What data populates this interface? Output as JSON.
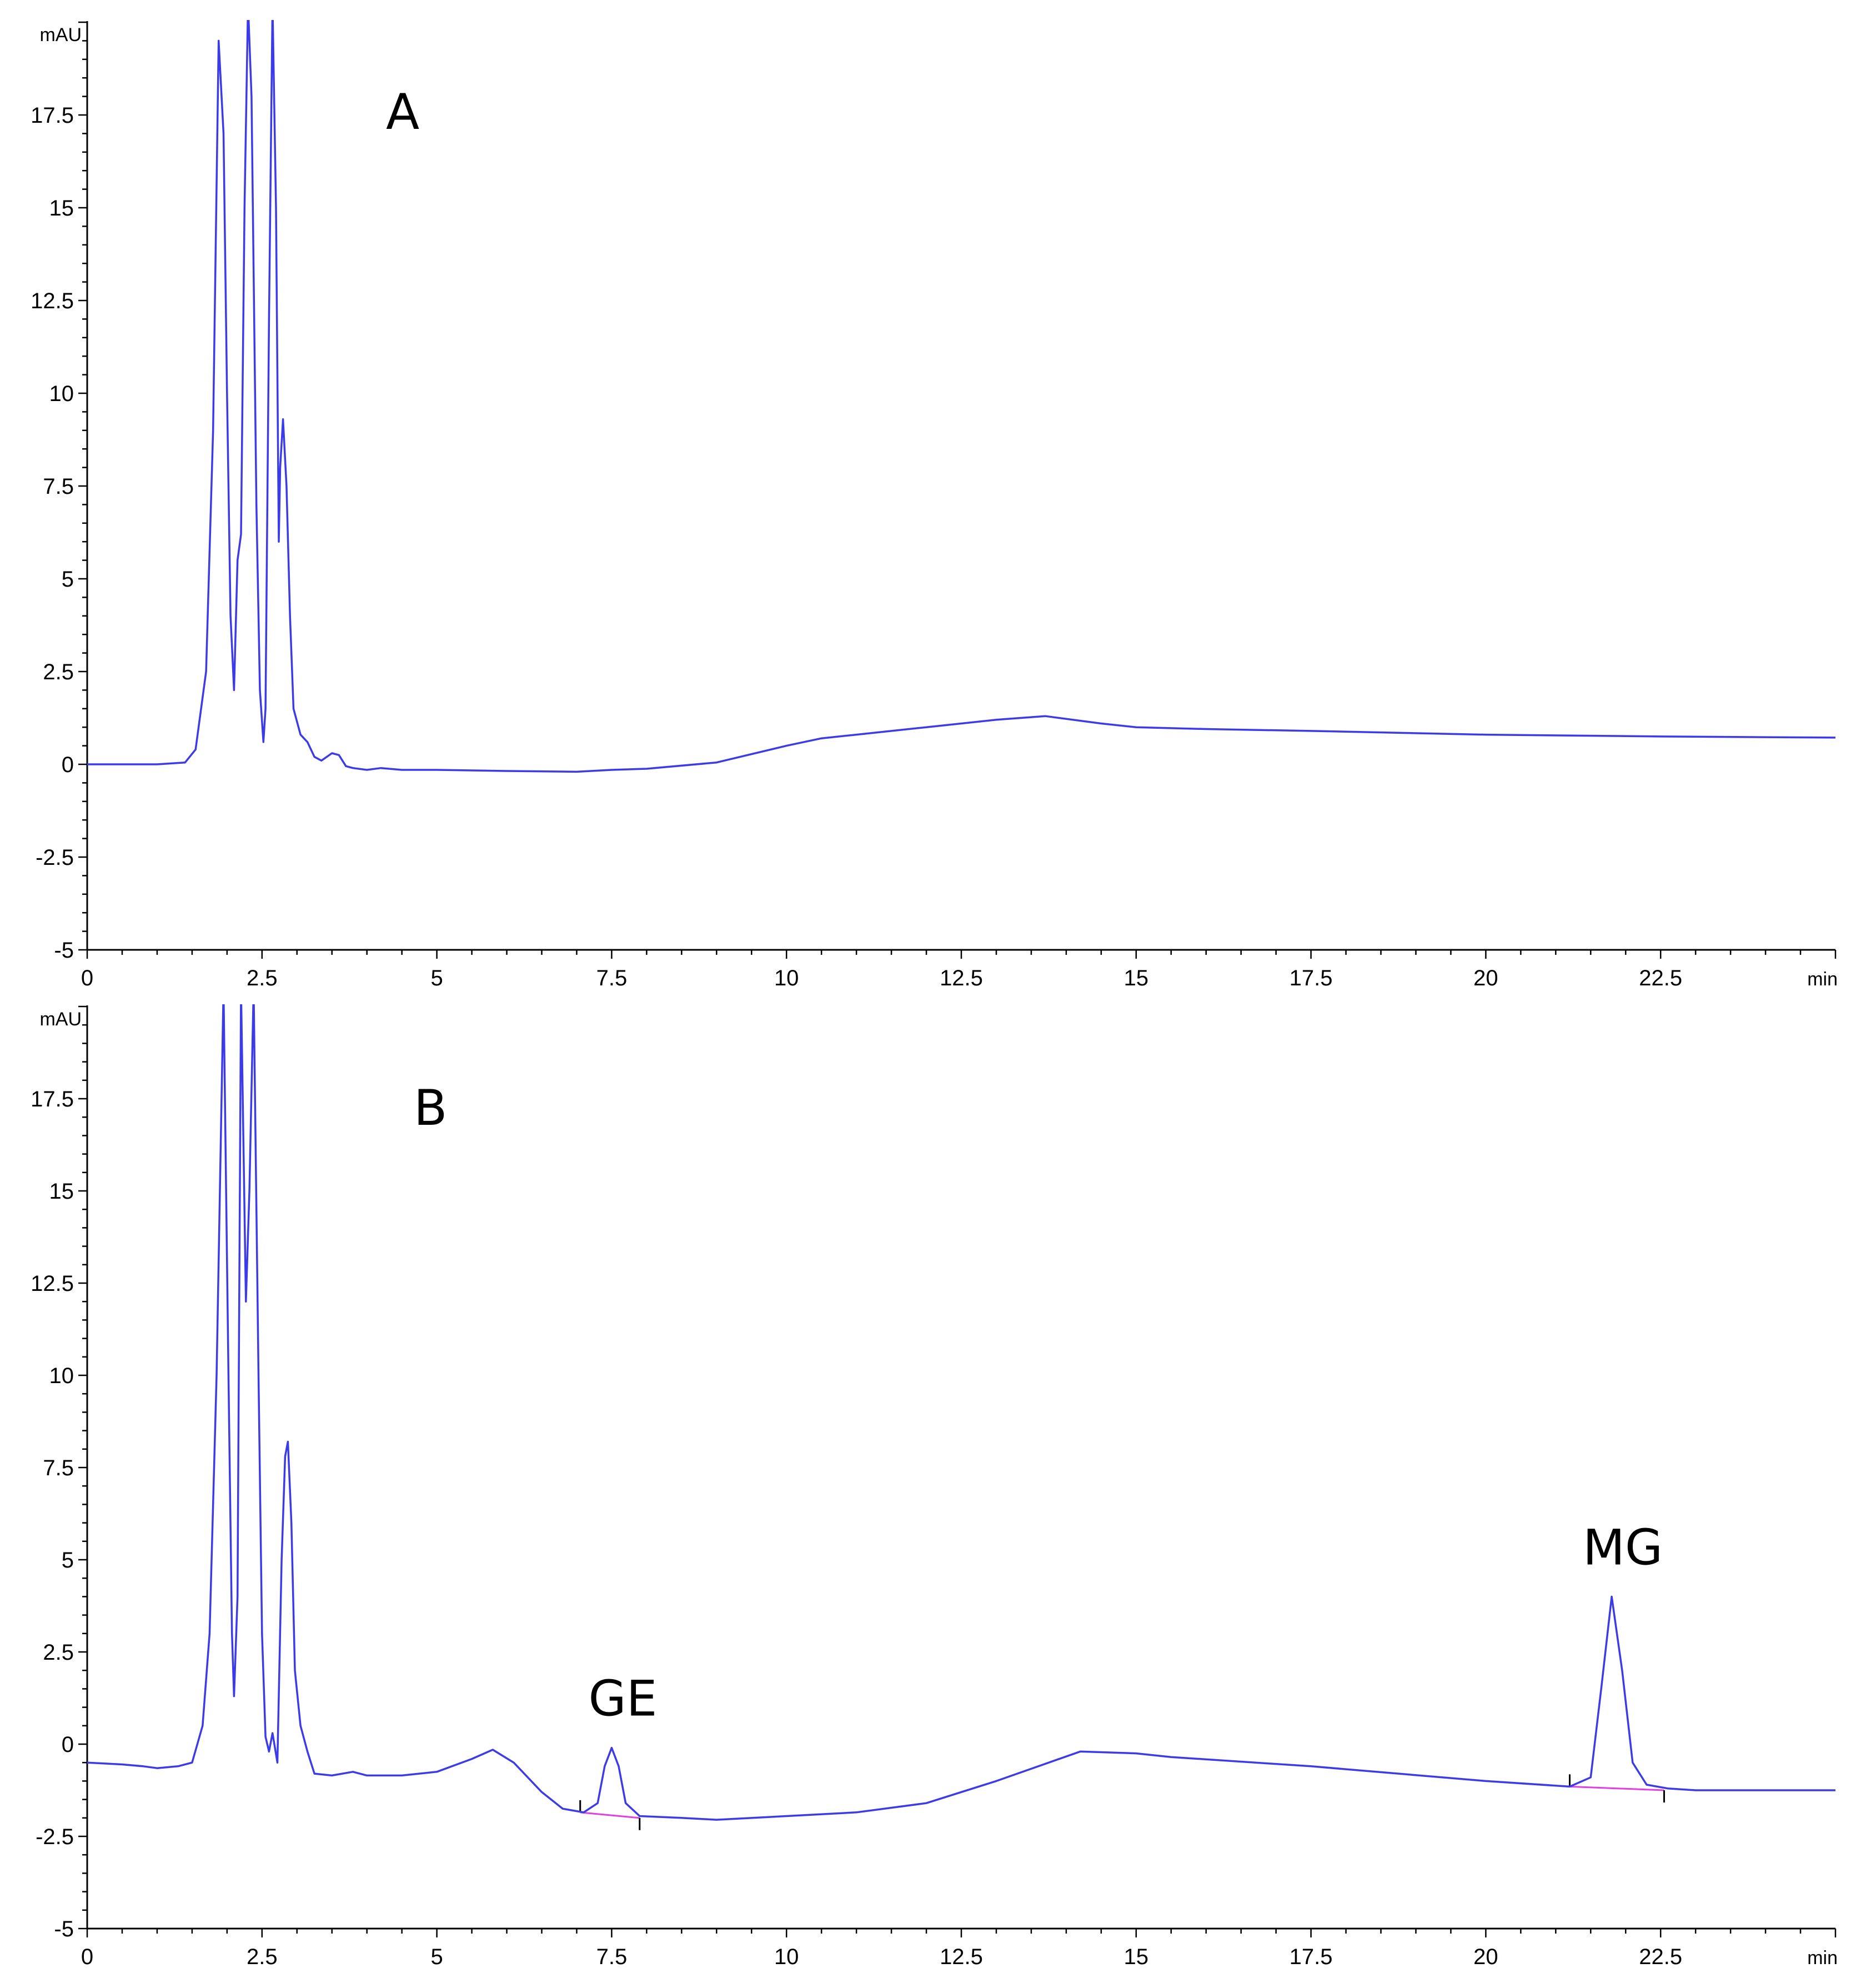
{
  "chart_data": [
    {
      "type": "line",
      "panel_label": "A",
      "ylabel": "mAU",
      "xlabel": "min",
      "xlim": [
        0,
        25
      ],
      "ylim": [
        -5,
        20
      ],
      "x_ticks": [
        "0",
        "2.5",
        "5",
        "7.5",
        "10",
        "12.5",
        "15",
        "17.5",
        "20",
        "22.5"
      ],
      "y_ticks": [
        "-5",
        "-2.5",
        "0",
        "2.5",
        "5",
        "7.5",
        "10",
        "12.5",
        "15",
        "17.5"
      ],
      "line_color": "#3b3be8",
      "points": [
        [
          0,
          0
        ],
        [
          1.0,
          0
        ],
        [
          1.4,
          0.05
        ],
        [
          1.55,
          0.4
        ],
        [
          1.7,
          2.5
        ],
        [
          1.8,
          9
        ],
        [
          1.88,
          19.5
        ],
        [
          1.95,
          17
        ],
        [
          2.0,
          10
        ],
        [
          2.05,
          4
        ],
        [
          2.1,
          2.0
        ],
        [
          2.15,
          5.5
        ],
        [
          2.2,
          6.2
        ],
        [
          2.25,
          15
        ],
        [
          2.3,
          20.5
        ],
        [
          2.35,
          18
        ],
        [
          2.42,
          7
        ],
        [
          2.47,
          2.0
        ],
        [
          2.52,
          0.6
        ],
        [
          2.55,
          1.5
        ],
        [
          2.6,
          12
        ],
        [
          2.65,
          20.5
        ],
        [
          2.7,
          15
        ],
        [
          2.74,
          6
        ],
        [
          2.76,
          8.0
        ],
        [
          2.8,
          9.3
        ],
        [
          2.85,
          7.5
        ],
        [
          2.9,
          4
        ],
        [
          2.95,
          1.5
        ],
        [
          3.05,
          0.8
        ],
        [
          3.15,
          0.6
        ],
        [
          3.25,
          0.2
        ],
        [
          3.35,
          0.1
        ],
        [
          3.5,
          0.3
        ],
        [
          3.6,
          0.25
        ],
        [
          3.7,
          -0.05
        ],
        [
          3.8,
          -0.1
        ],
        [
          4.0,
          -0.15
        ],
        [
          4.2,
          -0.1
        ],
        [
          4.5,
          -0.15
        ],
        [
          5,
          -0.15
        ],
        [
          6,
          -0.18
        ],
        [
          7,
          -0.2
        ],
        [
          7.5,
          -0.15
        ],
        [
          8,
          -0.12
        ],
        [
          9,
          0.05
        ],
        [
          10,
          0.5
        ],
        [
          10.5,
          0.7
        ],
        [
          11,
          0.8
        ],
        [
          12,
          1.0
        ],
        [
          13,
          1.2
        ],
        [
          13.7,
          1.3
        ],
        [
          14.5,
          1.1
        ],
        [
          15,
          1.0
        ],
        [
          16,
          0.95
        ],
        [
          17.5,
          0.9
        ],
        [
          20,
          0.8
        ],
        [
          22.5,
          0.75
        ],
        [
          25,
          0.72
        ]
      ],
      "annotations": []
    },
    {
      "type": "line",
      "panel_label": "B",
      "ylabel": "mAU",
      "xlabel": "min",
      "xlim": [
        0,
        25
      ],
      "ylim": [
        -5,
        20
      ],
      "x_ticks": [
        "0",
        "2.5",
        "5",
        "7.5",
        "10",
        "12.5",
        "15",
        "17.5",
        "20",
        "22.5"
      ],
      "y_ticks": [
        "-5",
        "-2.5",
        "0",
        "2.5",
        "5",
        "7.5",
        "10",
        "12.5",
        "15",
        "17.5"
      ],
      "line_color": "#3b3be8",
      "baseline_color": "#e040e0",
      "points": [
        [
          0,
          -0.5
        ],
        [
          0.5,
          -0.55
        ],
        [
          0.8,
          -0.6
        ],
        [
          1.0,
          -0.65
        ],
        [
          1.3,
          -0.6
        ],
        [
          1.5,
          -0.5
        ],
        [
          1.65,
          0.5
        ],
        [
          1.75,
          3
        ],
        [
          1.85,
          10
        ],
        [
          1.95,
          20.5
        ],
        [
          2.02,
          10
        ],
        [
          2.07,
          3
        ],
        [
          2.1,
          1.3
        ],
        [
          2.15,
          4
        ],
        [
          2.2,
          20.5
        ],
        [
          2.27,
          12
        ],
        [
          2.32,
          15
        ],
        [
          2.38,
          20.5
        ],
        [
          2.45,
          10
        ],
        [
          2.5,
          3
        ],
        [
          2.55,
          0.2
        ],
        [
          2.6,
          -0.2
        ],
        [
          2.65,
          0.3
        ],
        [
          2.72,
          -0.5
        ],
        [
          2.78,
          5
        ],
        [
          2.83,
          7.8
        ],
        [
          2.87,
          8.2
        ],
        [
          2.92,
          6
        ],
        [
          2.97,
          2
        ],
        [
          3.05,
          0.5
        ],
        [
          3.15,
          -0.2
        ],
        [
          3.25,
          -0.8
        ],
        [
          3.5,
          -0.85
        ],
        [
          3.8,
          -0.75
        ],
        [
          4.0,
          -0.85
        ],
        [
          4.5,
          -0.85
        ],
        [
          5.0,
          -0.75
        ],
        [
          5.5,
          -0.4
        ],
        [
          5.8,
          -0.15
        ],
        [
          6.1,
          -0.5
        ],
        [
          6.5,
          -1.3
        ],
        [
          6.8,
          -1.75
        ],
        [
          7.1,
          -1.85
        ],
        [
          7.3,
          -1.6
        ],
        [
          7.4,
          -0.6
        ],
        [
          7.5,
          -0.1
        ],
        [
          7.6,
          -0.6
        ],
        [
          7.7,
          -1.6
        ],
        [
          7.9,
          -1.95
        ],
        [
          8.5,
          -2.0
        ],
        [
          9.0,
          -2.05
        ],
        [
          10,
          -1.95
        ],
        [
          11,
          -1.85
        ],
        [
          12,
          -1.6
        ],
        [
          13,
          -1.0
        ],
        [
          14.2,
          -0.2
        ],
        [
          15.0,
          -0.25
        ],
        [
          15.5,
          -0.35
        ],
        [
          17.5,
          -0.6
        ],
        [
          20,
          -1.0
        ],
        [
          21.2,
          -1.15
        ],
        [
          21.5,
          -0.9
        ],
        [
          21.65,
          1.5
        ],
        [
          21.8,
          4.0
        ],
        [
          21.95,
          2.0
        ],
        [
          22.1,
          -0.5
        ],
        [
          22.3,
          -1.1
        ],
        [
          22.6,
          -1.2
        ],
        [
          23,
          -1.25
        ],
        [
          25,
          -1.25
        ]
      ],
      "baselines": [
        [
          [
            7.05,
            -1.85
          ],
          [
            7.9,
            -2.0
          ]
        ],
        [
          [
            21.2,
            -1.15
          ],
          [
            22.55,
            -1.25
          ]
        ]
      ],
      "annotations": [
        {
          "label": "GE",
          "x": 7.5,
          "y": -0.1
        },
        {
          "label": "MG",
          "x": 21.8,
          "y": 4.0
        }
      ]
    }
  ]
}
